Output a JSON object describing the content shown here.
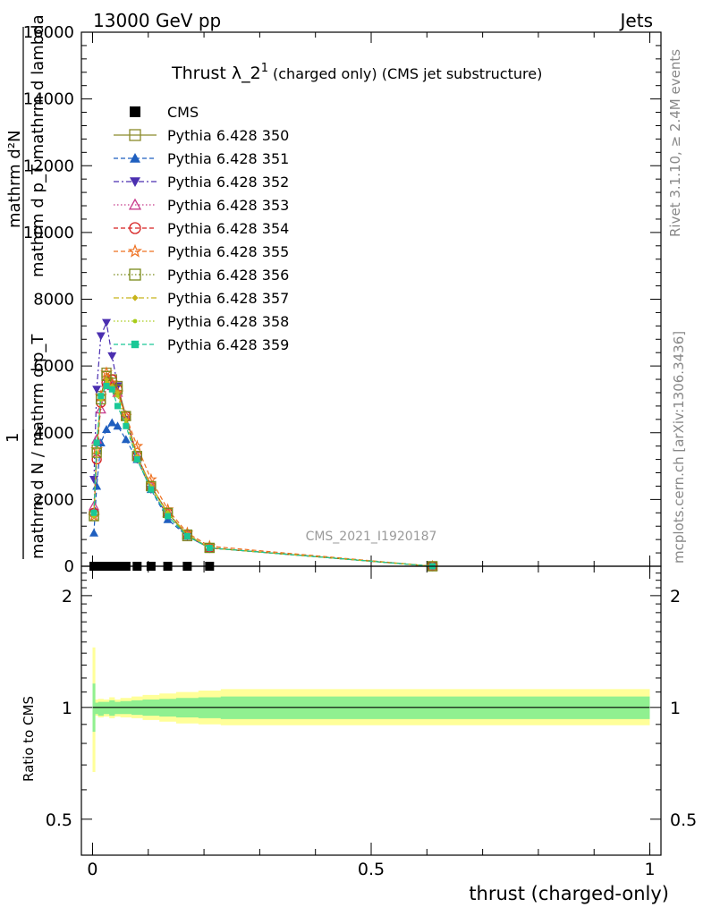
{
  "header": {
    "left": "13000 GeV pp",
    "right": "Jets"
  },
  "side_labels": {
    "rivet": "Rivet 3.1.10, ≥ 2.4M events",
    "mcplots": "mcplots.cern.ch [arXiv:1306.3436]"
  },
  "main": {
    "title": "Thrust λ_2¹ (charged only) (CMS jet substructure)",
    "title_main": "Thrust λ_2",
    "title_sup": "1",
    "title_tail": "(charged only) (CMS jet substructure)",
    "watermark": "CMS_2021_I1920187",
    "ylabel_lines": [
      "mathrm d²N",
      "mathrm d p_T mathrm d lambda",
      "1",
      "mathrm d N / mathrm d p_T"
    ]
  },
  "ratio": {
    "ylabel": "Ratio to CMS",
    "xlabel": "thrust (charged-only)"
  },
  "chart_data": [
    {
      "type": "line",
      "panel": "main",
      "xlim": [
        -0.02,
        1.02
      ],
      "ylim": [
        0,
        16000
      ],
      "yticks": [
        0,
        2000,
        4000,
        6000,
        8000,
        10000,
        12000,
        14000,
        16000
      ],
      "ytick_labels": [
        "0",
        "2000",
        "4000",
        "6000",
        "8000",
        "10000",
        "12000",
        "14000",
        "16000"
      ],
      "legend_position": "top-left",
      "x": [
        0.0025,
        0.0075,
        0.015,
        0.025,
        0.035,
        0.045,
        0.06,
        0.08,
        0.105,
        0.135,
        0.17,
        0.21,
        0.61
      ],
      "series": [
        {
          "name": "CMS",
          "color": "#000000",
          "marker": "square-filled",
          "dash": "none",
          "values": [
            0,
            0,
            0,
            0,
            0,
            0,
            0,
            0,
            0,
            0,
            0,
            0,
            0
          ]
        },
        {
          "name": "Pythia 6.428 350",
          "color": "#8a8a2a",
          "marker": "square-open",
          "dash": "solid",
          "values": [
            1500,
            3500,
            5100,
            5800,
            5600,
            5400,
            4500,
            3300,
            2400,
            1600,
            900,
            550,
            0
          ]
        },
        {
          "name": "Pythia 6.428 351",
          "color": "#1f5fbf",
          "marker": "triangle-up-filled",
          "dash": "5,3",
          "values": [
            1000,
            2400,
            3700,
            4100,
            4300,
            4200,
            3800,
            3200,
            2300,
            1400,
            900,
            550,
            0
          ]
        },
        {
          "name": "Pythia 6.428 352",
          "color": "#4b2fb0",
          "marker": "triangle-down-filled",
          "dash": "6,3,2,3",
          "values": [
            2600,
            5300,
            6900,
            7300,
            6300,
            5400,
            4400,
            3200,
            2300,
            1500,
            900,
            550,
            0
          ]
        },
        {
          "name": "Pythia 6.428 353",
          "color": "#c83c8c",
          "marker": "triangle-up-open",
          "dash": "1.5,2.5",
          "values": [
            1800,
            3800,
            4700,
            5500,
            5400,
            5200,
            4500,
            3300,
            2400,
            1600,
            950,
            550,
            0
          ]
        },
        {
          "name": "Pythia 6.428 354",
          "color": "#d62020",
          "marker": "circle-open",
          "dash": "5,3",
          "values": [
            1600,
            3200,
            4900,
            5500,
            5600,
            5300,
            4500,
            3300,
            2400,
            1600,
            950,
            550,
            0
          ]
        },
        {
          "name": "Pythia 6.428 355",
          "color": "#ee7020",
          "marker": "star-open",
          "dash": "5,3",
          "values": [
            1500,
            3500,
            5100,
            5800,
            5500,
            5200,
            4500,
            3600,
            2600,
            1700,
            1000,
            600,
            0
          ]
        },
        {
          "name": "Pythia 6.428 356",
          "color": "#7a8a1a",
          "marker": "square-open",
          "dash": "1.5,2.5",
          "values": [
            1500,
            3400,
            5000,
            5700,
            5500,
            5300,
            4500,
            3300,
            2400,
            1600,
            950,
            550,
            0
          ]
        },
        {
          "name": "Pythia 6.428 357",
          "color": "#c8b41a",
          "marker": "diamond-small",
          "dash": "6,3,2,3",
          "values": [
            1500,
            3400,
            5000,
            5600,
            5400,
            5200,
            4400,
            3300,
            2400,
            1600,
            950,
            550,
            0
          ]
        },
        {
          "name": "Pythia 6.428 358",
          "color": "#a8cc1a",
          "marker": "dot",
          "dash": "1.5,2.5",
          "values": [
            1500,
            3400,
            5000,
            5500,
            5300,
            5100,
            4300,
            3200,
            2300,
            1600,
            950,
            550,
            0
          ]
        },
        {
          "name": "Pythia 6.428 359",
          "color": "#1ac896",
          "marker": "square-small-filled",
          "dash": "5,3",
          "values": [
            1600,
            3700,
            5100,
            5400,
            5300,
            4800,
            4200,
            3200,
            2300,
            1500,
            900,
            550,
            0
          ]
        }
      ]
    },
    {
      "type": "area",
      "panel": "ratio",
      "xlim": [
        -0.02,
        1.02
      ],
      "ylim": [
        0.4,
        2.4
      ],
      "log_scale": true,
      "yticks": [
        0.5,
        1,
        2
      ],
      "ytick_labels": [
        "0.5",
        "1",
        "2"
      ],
      "xticks": [
        0,
        0.5,
        1
      ],
      "xtick_labels": [
        "0",
        "0.5",
        "1"
      ],
      "reference_line": 1,
      "band_edges": [
        0,
        0.005,
        0.01,
        0.02,
        0.03,
        0.04,
        0.05,
        0.07,
        0.09,
        0.12,
        0.15,
        0.19,
        0.23,
        1.0
      ],
      "inner_band": {
        "color": "#90f090",
        "lo": [
          0.86,
          0.96,
          0.95,
          0.96,
          0.95,
          0.96,
          0.96,
          0.955,
          0.95,
          0.945,
          0.94,
          0.935,
          0.93
        ],
        "hi": [
          1.16,
          1.03,
          1.035,
          1.035,
          1.045,
          1.035,
          1.04,
          1.045,
          1.05,
          1.055,
          1.06,
          1.065,
          1.07
        ]
      },
      "outer_band": {
        "color": "#ffff99",
        "lo": [
          0.67,
          0.95,
          0.94,
          0.945,
          0.935,
          0.945,
          0.94,
          0.935,
          0.925,
          0.915,
          0.905,
          0.9,
          0.895
        ],
        "hi": [
          1.45,
          1.05,
          1.055,
          1.05,
          1.065,
          1.05,
          1.06,
          1.07,
          1.08,
          1.09,
          1.1,
          1.11,
          1.12
        ]
      }
    }
  ]
}
